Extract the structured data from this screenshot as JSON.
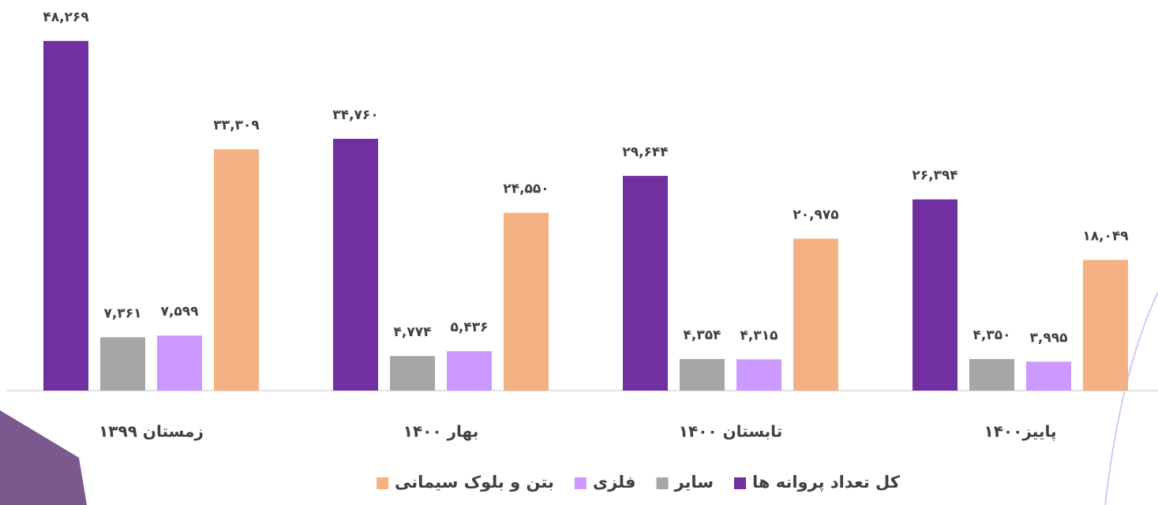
{
  "chart_data": {
    "type": "bar",
    "categories": [
      "زمستان ۱۳۹۹",
      "بهار ۱۴۰۰",
      "تابستان ۱۴۰۰",
      "پاییز۱۴۰۰"
    ],
    "series": [
      {
        "name": "کل تعداد پروانه ها",
        "color": "#7030a0",
        "values": [
          48269,
          34760,
          29644,
          26394
        ],
        "value_labels": [
          "۴۸,۲۶۹",
          "۳۴,۷۶۰",
          "۲۹,۶۴۴",
          "۲۶,۳۹۴"
        ]
      },
      {
        "name": "سایر",
        "color": "#a6a6a6",
        "values": [
          7361,
          4774,
          4354,
          4350
        ],
        "value_labels": [
          "۷,۳۶۱",
          "۴,۷۷۴",
          "۴,۳۵۴",
          "۴,۳۵۰"
        ]
      },
      {
        "name": "فلزی",
        "color": "#cc99ff",
        "values": [
          7599,
          5436,
          4315,
          3995
        ],
        "value_labels": [
          "۷,۵۹۹",
          "۵,۴۳۶",
          "۴,۳۱۵",
          "۳,۹۹۵"
        ]
      },
      {
        "name": "بتن و بلوک سیمانی",
        "color": "#f4b183",
        "values": [
          33309,
          24550,
          20975,
          18049
        ],
        "value_labels": [
          "۳۳,۳۰۹",
          "۲۴,۵۵۰",
          "۲۰,۹۷۵",
          "۱۸,۰۴۹"
        ]
      }
    ],
    "ylim": [
      0,
      50000
    ]
  }
}
